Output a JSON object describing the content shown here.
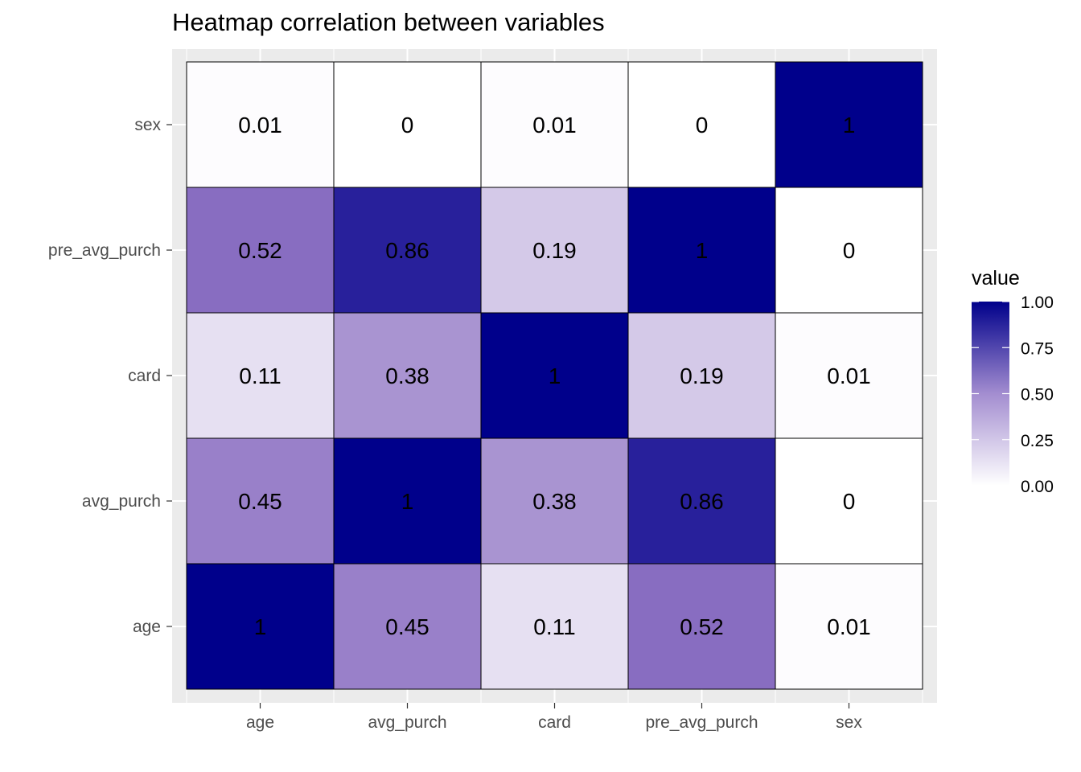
{
  "chart_data": {
    "type": "heatmap",
    "title": "Heatmap correlation between variables",
    "xlabel": "",
    "ylabel": "",
    "x_categories": [
      "age",
      "avg_purch",
      "card",
      "pre_avg_purch",
      "sex"
    ],
    "y_categories": [
      "age",
      "avg_purch",
      "card",
      "pre_avg_purch",
      "sex"
    ],
    "values": [
      [
        1,
        0.45,
        0.11,
        0.52,
        0.01
      ],
      [
        0.45,
        1,
        0.38,
        0.86,
        0
      ],
      [
        0.11,
        0.38,
        1,
        0.19,
        0.01
      ],
      [
        0.52,
        0.86,
        0.19,
        1,
        0
      ],
      [
        0.01,
        0,
        0.01,
        0,
        1
      ]
    ],
    "legend": {
      "title": "value",
      "ticks": [
        "0.00",
        "0.25",
        "0.50",
        "0.75",
        "1.00"
      ],
      "position": "right"
    },
    "color_scale": {
      "low": "#ffffff",
      "mid": "#8e72c3",
      "high": "#00008b"
    },
    "grid": true,
    "panel_background": "#ebebeb"
  }
}
